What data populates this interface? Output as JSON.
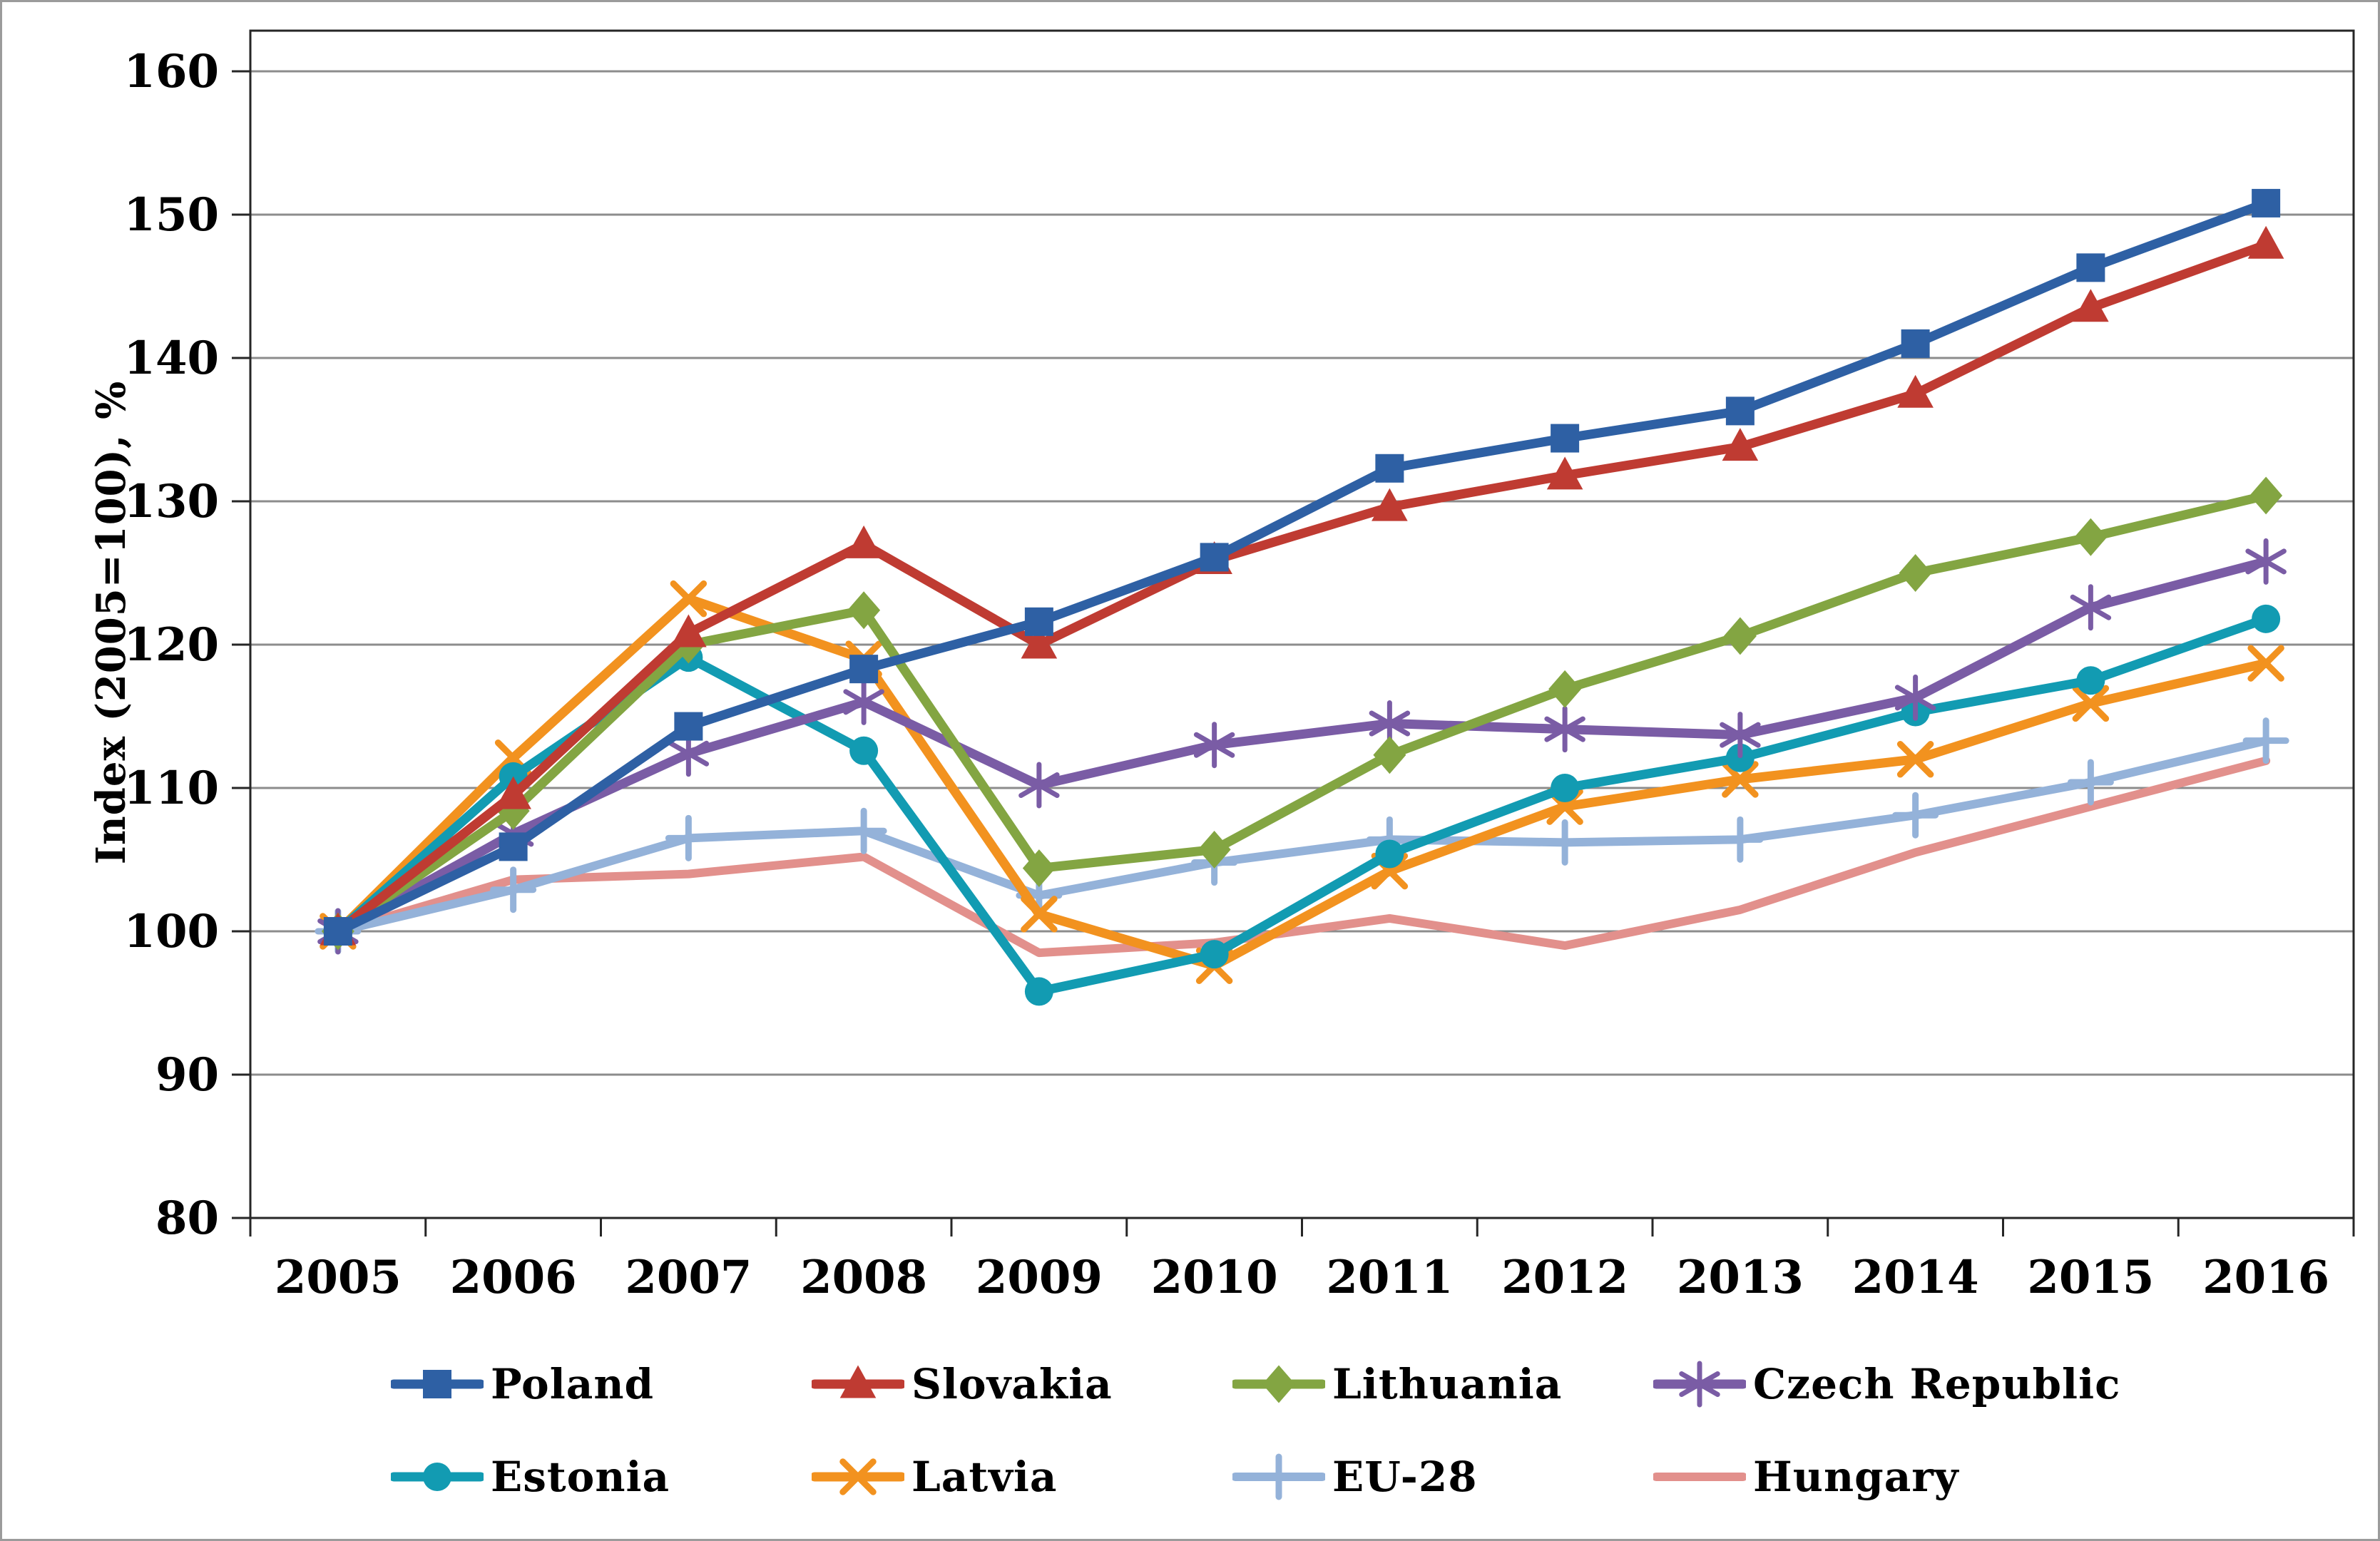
{
  "figure": {
    "background": "#ffffff",
    "outer_border_color": "#9b9b9b",
    "plot_border_color": "#262626",
    "gridline_color": "#8c8c8c",
    "text_color": "#000000"
  },
  "chart_data": {
    "type": "line",
    "title": "",
    "xlabel": "",
    "ylabel": "Index (2005=100), %",
    "ylim": [
      80,
      160
    ],
    "ytick_step": 10,
    "grid": true,
    "legend_position": "bottom",
    "categories": [
      "2005",
      "2006",
      "2007",
      "2008",
      "2009",
      "2010",
      "2011",
      "2012",
      "2013",
      "2014",
      "2015",
      "2016"
    ],
    "series": [
      {
        "name": "Poland",
        "color": "#2E60A4",
        "marker": "square",
        "line_width": 13,
        "marker_size": 40,
        "values": [
          100,
          105.9,
          114.3,
          118.3,
          121.6,
          126.1,
          132.3,
          134.4,
          136.3,
          141.0,
          146.3,
          150.8
        ]
      },
      {
        "name": "Slovakia",
        "color": "#BF3B32",
        "marker": "triangle",
        "line_width": 13,
        "marker_size": 46,
        "values": [
          100,
          109.5,
          120.8,
          127.0,
          120.0,
          125.9,
          129.6,
          131.8,
          133.8,
          137.5,
          143.5,
          147.9
        ]
      },
      {
        "name": "Lithuania",
        "color": "#83A542",
        "marker": "diamond",
        "line_width": 13,
        "marker_size": 46,
        "values": [
          100,
          108.4,
          120.0,
          122.4,
          104.4,
          105.7,
          112.3,
          116.9,
          120.6,
          125.0,
          127.5,
          130.4
        ]
      },
      {
        "name": "Czech Republic",
        "color": "#7A5CA5",
        "marker": "star6",
        "line_width": 13,
        "marker_size": 58,
        "values": [
          100,
          106.8,
          112.4,
          116.0,
          110.2,
          113.0,
          114.5,
          114.1,
          113.7,
          116.3,
          122.6,
          125.8
        ]
      },
      {
        "name": "Estonia",
        "color": "#129BB2",
        "marker": "circle",
        "line_width": 13,
        "marker_size": 40,
        "values": [
          100,
          110.8,
          119.1,
          112.6,
          95.8,
          98.4,
          105.4,
          110.0,
          112.1,
          115.3,
          117.5,
          121.8
        ]
      },
      {
        "name": "Latvia",
        "color": "#F2921F",
        "marker": "x",
        "line_width": 13,
        "marker_size": 50,
        "values": [
          100,
          112.1,
          123.2,
          119.0,
          101.2,
          97.6,
          104.2,
          108.7,
          110.6,
          112.0,
          115.9,
          118.7
        ]
      },
      {
        "name": "EU-28",
        "color": "#94B2D9",
        "marker": "plus",
        "line_width": 12,
        "marker_size": 56,
        "values": [
          100,
          102.9,
          106.5,
          107.0,
          102.5,
          104.8,
          106.4,
          106.2,
          106.4,
          108.1,
          110.4,
          113.3
        ]
      },
      {
        "name": "Hungary",
        "color": "#E2908C",
        "marker": "none",
        "line_width": 12,
        "marker_size": 0,
        "values": [
          100,
          103.6,
          104.0,
          105.2,
          98.5,
          99.2,
          100.9,
          99.0,
          101.5,
          105.5,
          108.7,
          111.9
        ]
      }
    ]
  },
  "legend_columns_x": [
    545,
    1135,
    1725,
    2315
  ]
}
